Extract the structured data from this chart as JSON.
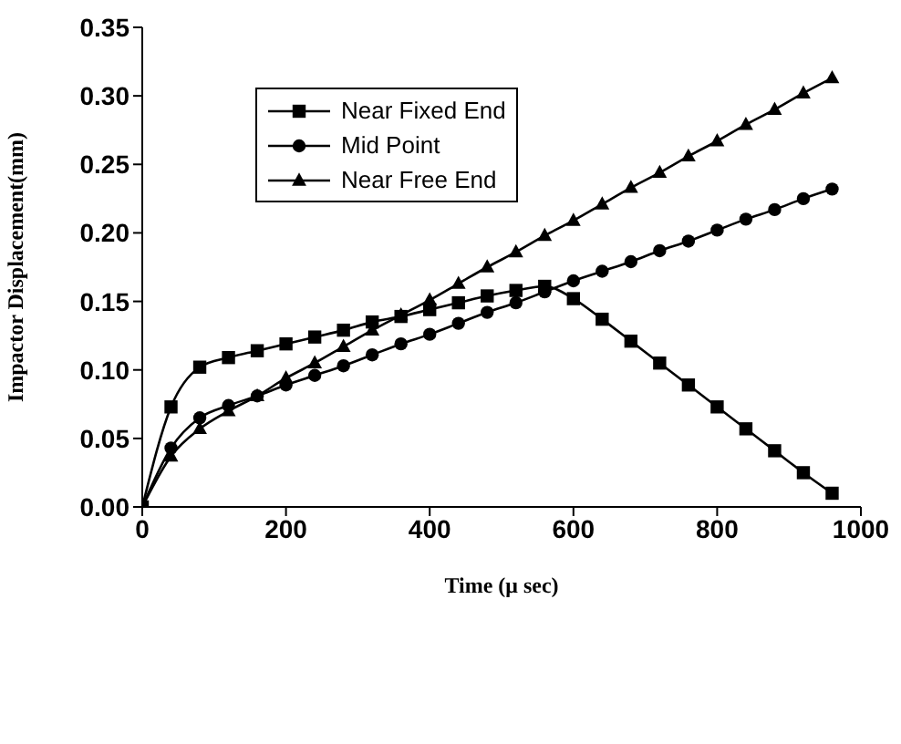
{
  "chart_data": {
    "type": "line",
    "xlabel": "Time (μ sec)",
    "ylabel": "Impactor Displacement(mm)",
    "x": [
      0,
      40,
      80,
      120,
      160,
      200,
      240,
      280,
      320,
      360,
      400,
      440,
      480,
      520,
      560,
      600,
      640,
      680,
      720,
      760,
      800,
      840,
      880,
      920,
      960
    ],
    "series": [
      {
        "name": "Near Fixed End",
        "color": "#000000",
        "marker": "square",
        "values": [
          0,
          0.073,
          0.102,
          0.109,
          0.114,
          0.119,
          0.124,
          0.129,
          0.135,
          0.139,
          0.144,
          0.149,
          0.154,
          0.158,
          0.161,
          0.152,
          0.137,
          0.121,
          0.105,
          0.089,
          0.073,
          0.057,
          0.041,
          0.025,
          0.01
        ]
      },
      {
        "name": "Mid Point",
        "color": "#000000",
        "marker": "circle",
        "values": [
          0,
          0.043,
          0.065,
          0.074,
          0.081,
          0.089,
          0.096,
          0.103,
          0.111,
          0.119,
          0.126,
          0.134,
          0.142,
          0.149,
          0.157,
          0.165,
          0.172,
          0.179,
          0.187,
          0.194,
          0.202,
          0.21,
          0.217,
          0.225,
          0.232
        ]
      },
      {
        "name": "Near Free End",
        "color": "#000000",
        "marker": "triangle",
        "values": [
          0,
          0.037,
          0.057,
          0.07,
          0.081,
          0.094,
          0.105,
          0.117,
          0.129,
          0.14,
          0.151,
          0.163,
          0.175,
          0.186,
          0.198,
          0.209,
          0.221,
          0.233,
          0.244,
          0.256,
          0.267,
          0.279,
          0.29,
          0.302,
          0.313
        ]
      }
    ],
    "xlim": [
      0,
      1000
    ],
    "xticks": [
      0,
      200,
      400,
      600,
      800,
      1000
    ],
    "ylim": [
      0,
      0.35
    ],
    "yticks": [
      {
        "value": 0,
        "label": "0.00"
      },
      {
        "value": 0.05,
        "label": "0.05"
      },
      {
        "value": 0.1,
        "label": "0.10"
      },
      {
        "value": 0.15,
        "label": "0.15"
      },
      {
        "value": 0.2,
        "label": "0.20"
      },
      {
        "value": 0.25,
        "label": "0.25"
      },
      {
        "value": 0.3,
        "label": "0.30"
      },
      {
        "value": 0.35,
        "label": "0.35"
      }
    ],
    "grid": false,
    "legend": "top left",
    "line_style": "solid"
  }
}
